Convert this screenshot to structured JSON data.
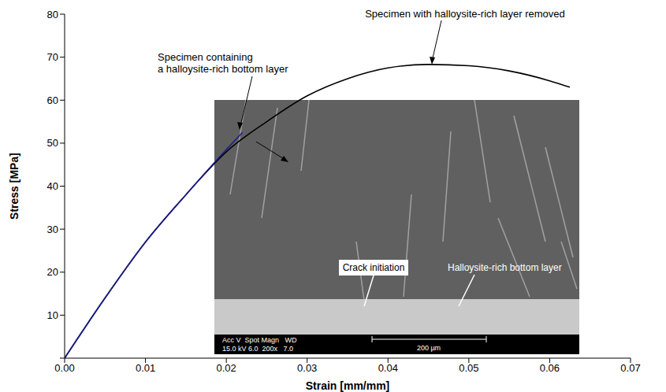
{
  "chart_data": {
    "type": "line",
    "x_label": "Strain [mm/mm]",
    "y_label": "Stress [MPa]",
    "xlim": [
      0,
      0.07
    ],
    "xticks": [
      {
        "value": 0,
        "label": "0.00"
      },
      {
        "value": 0.01,
        "label": "0.01"
      },
      {
        "value": 0.02,
        "label": "0.02"
      },
      {
        "value": 0.03,
        "label": "0.03"
      },
      {
        "value": 0.04,
        "label": "0.04"
      },
      {
        "value": 0.05,
        "label": "0.05"
      },
      {
        "value": 0.06,
        "label": "0.06"
      },
      {
        "value": 0.07,
        "label": "0.07"
      }
    ],
    "ylim": [
      0,
      80
    ],
    "yticks": [
      0,
      10,
      20,
      30,
      40,
      50,
      60,
      70,
      80
    ],
    "grid": false,
    "series": [
      {
        "name": "Specimen with halloysite-rich layer removed",
        "color": "#000000",
        "x": [
          0,
          0.005,
          0.01,
          0.015,
          0.02,
          0.025,
          0.03,
          0.035,
          0.04,
          0.045,
          0.05,
          0.055,
          0.06,
          0.0625
        ],
        "values": [
          0,
          14,
          27,
          38,
          48,
          55,
          61,
          65,
          67.5,
          68.3,
          68,
          66.8,
          64.5,
          63
        ]
      },
      {
        "name": "Specimen containing a halloysite-rich bottom layer",
        "color": "#1c1c8c",
        "x": [
          0,
          0.005,
          0.01,
          0.015,
          0.02,
          0.022
        ],
        "values": [
          0,
          14,
          27,
          38,
          48.5,
          52.5
        ]
      }
    ],
    "inset": {
      "labels": [
        "Crack initiation",
        "Halloysite-rich bottom layer"
      ],
      "scale_bar": "200 µm",
      "info_header": "Acc V  Spot Magn   WD",
      "info_values": "15.0 kV 6.0  200x   7.0"
    }
  }
}
